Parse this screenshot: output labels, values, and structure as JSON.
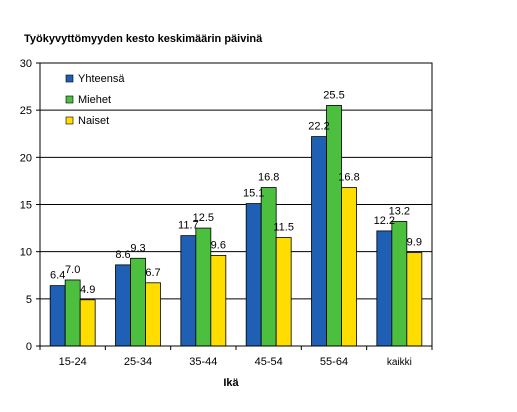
{
  "chart_data": {
    "type": "bar",
    "title": "Työkyvyttömyyden kesto keskimäärin päivinä",
    "xlabel": "Ikä",
    "ylabel": "",
    "ylim": [
      0,
      30
    ],
    "yticks": [
      0,
      5,
      10,
      15,
      20,
      25,
      30
    ],
    "grid": true,
    "legend_position": "top-left",
    "categories": [
      "15-24",
      "25-34",
      "35-44",
      "45-54",
      "55-64",
      "kaikki"
    ],
    "series": [
      {
        "name": "Yhteensä",
        "color": "#1f5fb4",
        "values": [
          6.4,
          8.6,
          11.7,
          15.1,
          22.2,
          12.2
        ]
      },
      {
        "name": "Miehet",
        "color": "#4cbf3f",
        "values": [
          7.0,
          9.3,
          12.5,
          16.8,
          25.5,
          13.2
        ]
      },
      {
        "name": "Naiset",
        "color": "#ffdd00",
        "values": [
          4.9,
          6.7,
          9.6,
          11.5,
          16.8,
          9.9
        ]
      }
    ]
  }
}
